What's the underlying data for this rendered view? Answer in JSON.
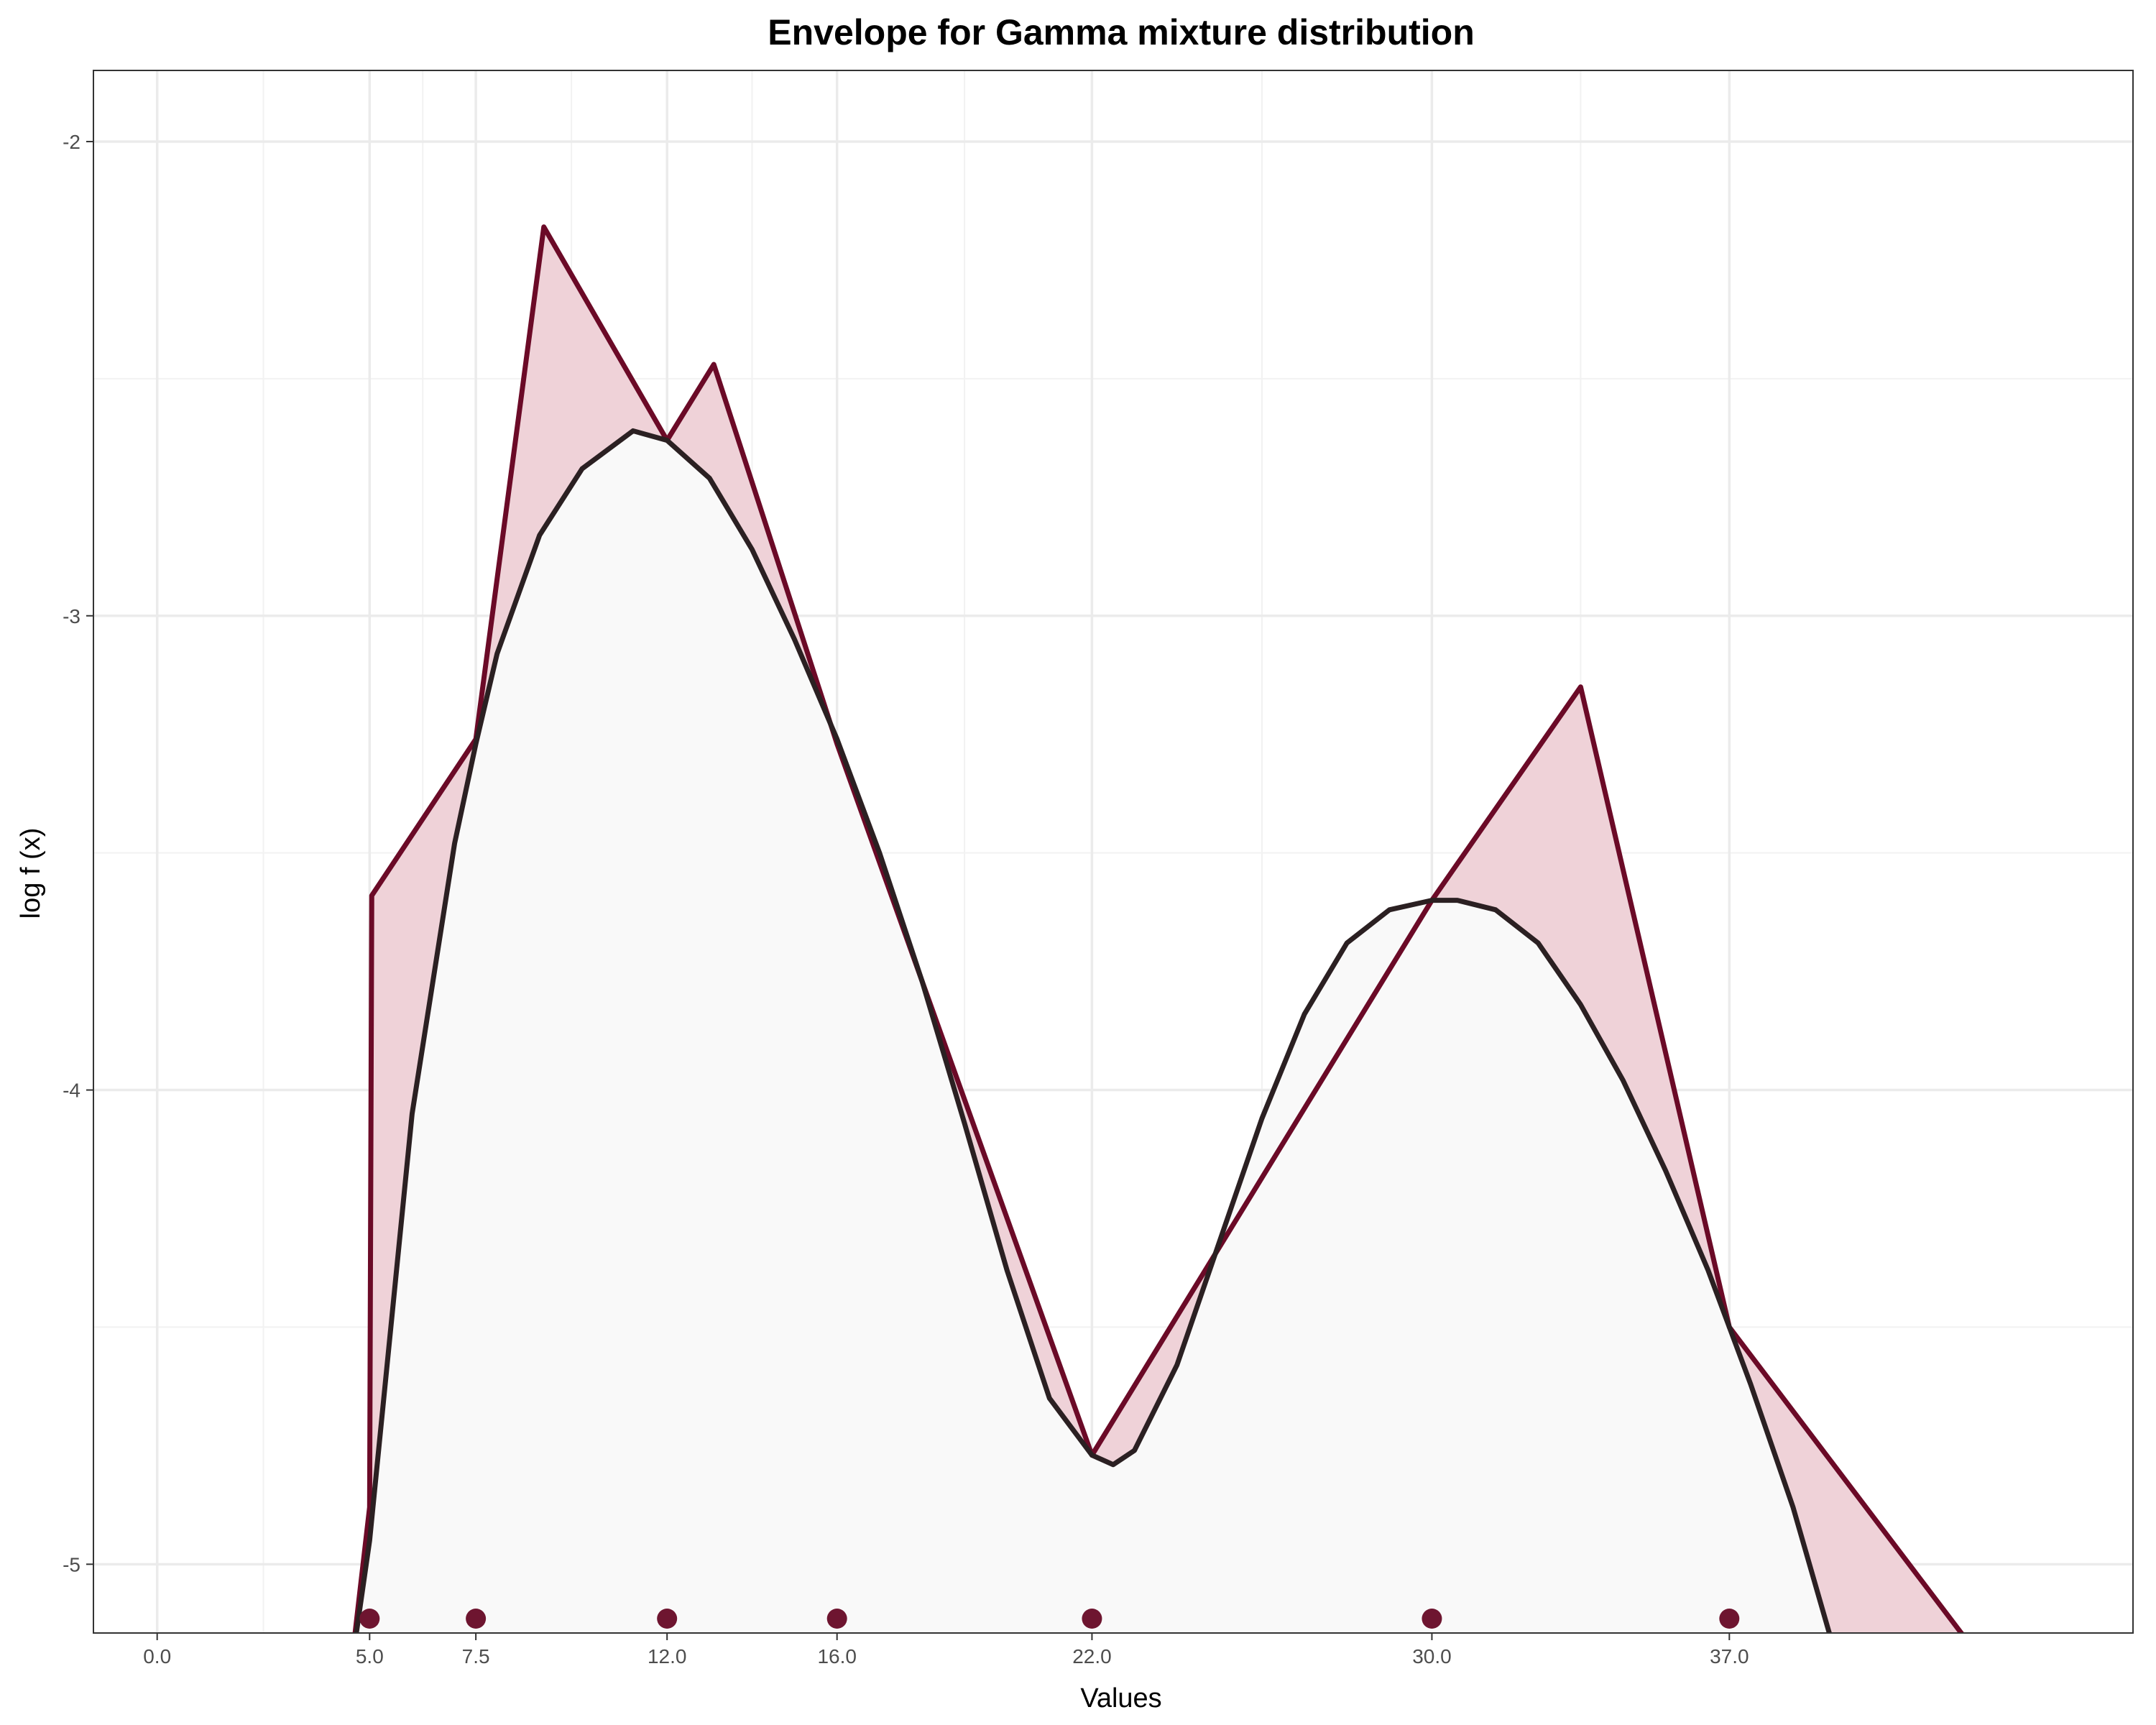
{
  "chart_data": {
    "type": "line",
    "title": "Envelope for Gamma mixture distribution",
    "xlabel": "Values",
    "ylabel": "log f (x)",
    "xlim": [
      -1.5,
      46.5
    ],
    "ylim": [
      -5.145,
      -1.85
    ],
    "x_ticks": [
      0.0,
      5.0,
      7.5,
      12.0,
      16.0,
      22.0,
      30.0,
      37.0
    ],
    "x_tick_labels": [
      "0.0",
      "5.0",
      "7.5",
      "12.0",
      "16.0",
      "22.0",
      "30.0",
      "37.0"
    ],
    "x_minor_grid": [
      2.5,
      6.25,
      9.75,
      14.0,
      19.0,
      26.0,
      33.5
    ],
    "y_ticks": [
      -2,
      -3,
      -4,
      -5
    ],
    "y_tick_labels": [
      "-2",
      "-3",
      "-4",
      "-5"
    ],
    "y_minor_grid": [
      -2.5,
      -3.5,
      -4.5
    ],
    "grid": true,
    "legend": "none",
    "series": [
      {
        "role": "envelope",
        "color": "#6b0a27",
        "fill": "#efd2d8",
        "x": [
          4.6,
          5.0,
          5.05,
          7.5,
          9.1,
          12.0,
          13.1,
          16.0,
          22.0,
          30.0,
          33.5,
          37.0,
          42.5
        ],
        "y": [
          -5.19,
          -4.88,
          -3.59,
          -3.26,
          -2.18,
          -2.63,
          -2.47,
          -3.27,
          -4.77,
          -3.6,
          -3.15,
          -4.5,
          -5.15
        ]
      },
      {
        "role": "log-density",
        "color": "#2b2022",
        "fill": "#f9f9f9",
        "x": [
          4.6,
          5.0,
          6.0,
          7.0,
          7.5,
          8.0,
          9.0,
          10.0,
          11.2,
          12.0,
          13.0,
          14.0,
          15.0,
          16.0,
          17.0,
          18.0,
          19.0,
          20.0,
          21.0,
          22.0,
          22.5,
          23.0,
          24.0,
          25.0,
          26.0,
          27.0,
          28.0,
          29.0,
          30.0,
          30.6,
          31.5,
          32.5,
          33.5,
          34.5,
          35.5,
          36.5,
          37.0,
          37.5,
          38.5,
          39.4
        ],
        "y": [
          -5.2,
          -4.95,
          -4.05,
          -3.48,
          -3.27,
          -3.08,
          -2.83,
          -2.69,
          -2.61,
          -2.63,
          -2.71,
          -2.86,
          -3.05,
          -3.26,
          -3.5,
          -3.77,
          -4.07,
          -4.38,
          -4.65,
          -4.77,
          -4.79,
          -4.76,
          -4.58,
          -4.32,
          -4.06,
          -3.84,
          -3.69,
          -3.62,
          -3.6,
          -3.6,
          -3.62,
          -3.69,
          -3.82,
          -3.98,
          -4.17,
          -4.38,
          -4.5,
          -4.62,
          -4.88,
          -5.16
        ]
      }
    ],
    "points": {
      "color": "#6e1530",
      "x": [
        5.0,
        7.5,
        12.0,
        16.0,
        22.0,
        30.0,
        37.0
      ],
      "y_position": "bottom"
    }
  }
}
